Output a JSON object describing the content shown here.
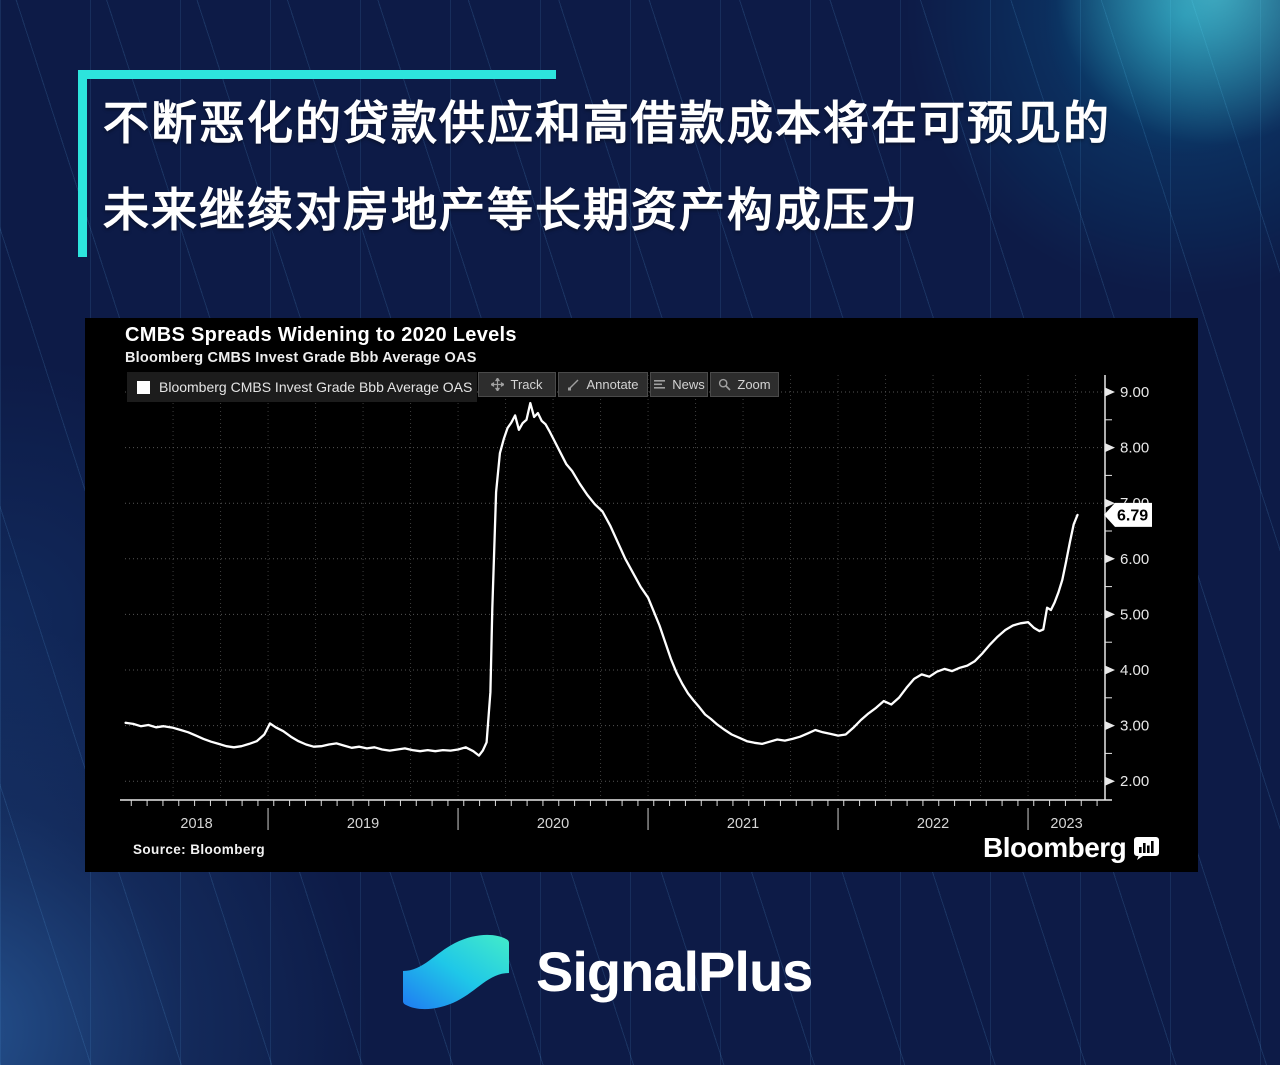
{
  "page": {
    "background_color": "#0d1b47",
    "accent_color": "#2de4dd",
    "headline_line1": "不断恶化的贷款供应和高借款成本将在可预见的",
    "headline_line2": "未来继续对房地产等长期资产构成压力"
  },
  "brand": {
    "name": "SignalPlus",
    "logo_gradient_start": "#43ecc9",
    "logo_gradient_mid": "#1fc7e8",
    "logo_gradient_end": "#1f7bf2"
  },
  "chart": {
    "title": "CMBS Spreads Widening to 2020 Levels",
    "subtitle": "Bloomberg CMBS Invest Grade Bbb Average OAS",
    "legend": "Bloomberg CMBS Invest Grade Bbb Average OAS",
    "toolbar": [
      "Track",
      "Annotate",
      "News",
      "Zoom"
    ],
    "source": "Source: Bloomberg",
    "brand_logo": "Bloomberg",
    "last_value_label": "6.79",
    "panel_bg": "#000000"
  },
  "chart_data": {
    "type": "line",
    "title": "CMBS Spreads Widening to 2020 Levels",
    "subtitle": "Bloomberg CMBS Invest Grade Bbb Average OAS",
    "legend_position": "top-left",
    "grid": "dotted",
    "xlabel": "",
    "ylabel": "",
    "x_years": [
      "2018",
      "2019",
      "2020",
      "2021",
      "2022",
      "2023"
    ],
    "xlim": [
      2018.247,
      2023.405
    ],
    "ylim": [
      1.8,
      9.3
    ],
    "yticks": [
      2,
      3,
      4,
      5,
      6,
      7,
      8,
      9
    ],
    "ytick_labels": [
      "2.00",
      "3.00",
      "4.00",
      "5.00",
      "6.00",
      "7.00",
      "8.00",
      "9.00"
    ],
    "last_value": 6.79,
    "series": [
      {
        "name": "Bloomberg CMBS Invest Grade Bbb Average OAS",
        "color": "#ffffff",
        "points": [
          [
            2018.25,
            3.05
          ],
          [
            2018.29,
            3.03
          ],
          [
            2018.33,
            2.99
          ],
          [
            2018.37,
            3.01
          ],
          [
            2018.41,
            2.97
          ],
          [
            2018.45,
            2.99
          ],
          [
            2018.5,
            2.96
          ],
          [
            2018.54,
            2.92
          ],
          [
            2018.58,
            2.88
          ],
          [
            2018.62,
            2.82
          ],
          [
            2018.66,
            2.76
          ],
          [
            2018.7,
            2.71
          ],
          [
            2018.74,
            2.67
          ],
          [
            2018.78,
            2.63
          ],
          [
            2018.82,
            2.61
          ],
          [
            2018.86,
            2.63
          ],
          [
            2018.9,
            2.67
          ],
          [
            2018.94,
            2.72
          ],
          [
            2018.98,
            2.84
          ],
          [
            2019.01,
            3.04
          ],
          [
            2019.04,
            2.97
          ],
          [
            2019.08,
            2.9
          ],
          [
            2019.12,
            2.8
          ],
          [
            2019.16,
            2.72
          ],
          [
            2019.2,
            2.66
          ],
          [
            2019.24,
            2.62
          ],
          [
            2019.28,
            2.63
          ],
          [
            2019.32,
            2.66
          ],
          [
            2019.36,
            2.68
          ],
          [
            2019.4,
            2.64
          ],
          [
            2019.44,
            2.6
          ],
          [
            2019.48,
            2.62
          ],
          [
            2019.52,
            2.59
          ],
          [
            2019.56,
            2.61
          ],
          [
            2019.6,
            2.57
          ],
          [
            2019.64,
            2.55
          ],
          [
            2019.68,
            2.57
          ],
          [
            2019.72,
            2.59
          ],
          [
            2019.76,
            2.56
          ],
          [
            2019.8,
            2.54
          ],
          [
            2019.84,
            2.56
          ],
          [
            2019.88,
            2.54
          ],
          [
            2019.92,
            2.56
          ],
          [
            2019.96,
            2.55
          ],
          [
            2020,
            2.57
          ],
          [
            2020.04,
            2.61
          ],
          [
            2020.08,
            2.54
          ],
          [
            2020.11,
            2.46
          ],
          [
            2020.13,
            2.55
          ],
          [
            2020.15,
            2.7
          ],
          [
            2020.17,
            3.6
          ],
          [
            2020.18,
            5.1
          ],
          [
            2020.2,
            7.2
          ],
          [
            2020.22,
            7.9
          ],
          [
            2020.24,
            8.15
          ],
          [
            2020.26,
            8.35
          ],
          [
            2020.28,
            8.45
          ],
          [
            2020.3,
            8.58
          ],
          [
            2020.32,
            8.32
          ],
          [
            2020.34,
            8.44
          ],
          [
            2020.36,
            8.5
          ],
          [
            2020.38,
            8.8
          ],
          [
            2020.4,
            8.55
          ],
          [
            2020.42,
            8.62
          ],
          [
            2020.44,
            8.48
          ],
          [
            2020.46,
            8.42
          ],
          [
            2020.48,
            8.3
          ],
          [
            2020.51,
            8.1
          ],
          [
            2020.54,
            7.9
          ],
          [
            2020.57,
            7.7
          ],
          [
            2020.6,
            7.58
          ],
          [
            2020.64,
            7.35
          ],
          [
            2020.68,
            7.15
          ],
          [
            2020.72,
            6.98
          ],
          [
            2020.76,
            6.85
          ],
          [
            2020.8,
            6.6
          ],
          [
            2020.84,
            6.3
          ],
          [
            2020.88,
            6.0
          ],
          [
            2020.92,
            5.75
          ],
          [
            2020.96,
            5.5
          ],
          [
            2021,
            5.3
          ],
          [
            2021.03,
            5.05
          ],
          [
            2021.06,
            4.8
          ],
          [
            2021.09,
            4.5
          ],
          [
            2021.12,
            4.2
          ],
          [
            2021.15,
            3.95
          ],
          [
            2021.18,
            3.75
          ],
          [
            2021.21,
            3.58
          ],
          [
            2021.24,
            3.45
          ],
          [
            2021.27,
            3.33
          ],
          [
            2021.3,
            3.2
          ],
          [
            2021.33,
            3.12
          ],
          [
            2021.36,
            3.03
          ],
          [
            2021.4,
            2.93
          ],
          [
            2021.44,
            2.84
          ],
          [
            2021.48,
            2.78
          ],
          [
            2021.52,
            2.72
          ],
          [
            2021.56,
            2.69
          ],
          [
            2021.6,
            2.67
          ],
          [
            2021.64,
            2.71
          ],
          [
            2021.68,
            2.75
          ],
          [
            2021.72,
            2.73
          ],
          [
            2021.76,
            2.76
          ],
          [
            2021.8,
            2.8
          ],
          [
            2021.84,
            2.86
          ],
          [
            2021.88,
            2.92
          ],
          [
            2021.92,
            2.88
          ],
          [
            2021.96,
            2.85
          ],
          [
            2022,
            2.82
          ],
          [
            2022.04,
            2.84
          ],
          [
            2022.08,
            2.96
          ],
          [
            2022.12,
            3.1
          ],
          [
            2022.16,
            3.22
          ],
          [
            2022.2,
            3.32
          ],
          [
            2022.24,
            3.44
          ],
          [
            2022.28,
            3.38
          ],
          [
            2022.32,
            3.5
          ],
          [
            2022.36,
            3.68
          ],
          [
            2022.4,
            3.84
          ],
          [
            2022.44,
            3.92
          ],
          [
            2022.48,
            3.88
          ],
          [
            2022.52,
            3.97
          ],
          [
            2022.56,
            4.02
          ],
          [
            2022.6,
            3.98
          ],
          [
            2022.64,
            4.04
          ],
          [
            2022.68,
            4.08
          ],
          [
            2022.72,
            4.16
          ],
          [
            2022.76,
            4.3
          ],
          [
            2022.8,
            4.46
          ],
          [
            2022.84,
            4.6
          ],
          [
            2022.88,
            4.72
          ],
          [
            2022.92,
            4.8
          ],
          [
            2022.96,
            4.84
          ],
          [
            2023,
            4.86
          ],
          [
            2023.03,
            4.76
          ],
          [
            2023.06,
            4.7
          ],
          [
            2023.08,
            4.73
          ],
          [
            2023.1,
            5.12
          ],
          [
            2023.12,
            5.08
          ],
          [
            2023.14,
            5.22
          ],
          [
            2023.16,
            5.4
          ],
          [
            2023.18,
            5.62
          ],
          [
            2023.2,
            5.95
          ],
          [
            2023.22,
            6.3
          ],
          [
            2023.24,
            6.62
          ],
          [
            2023.26,
            6.79
          ]
        ]
      }
    ]
  }
}
